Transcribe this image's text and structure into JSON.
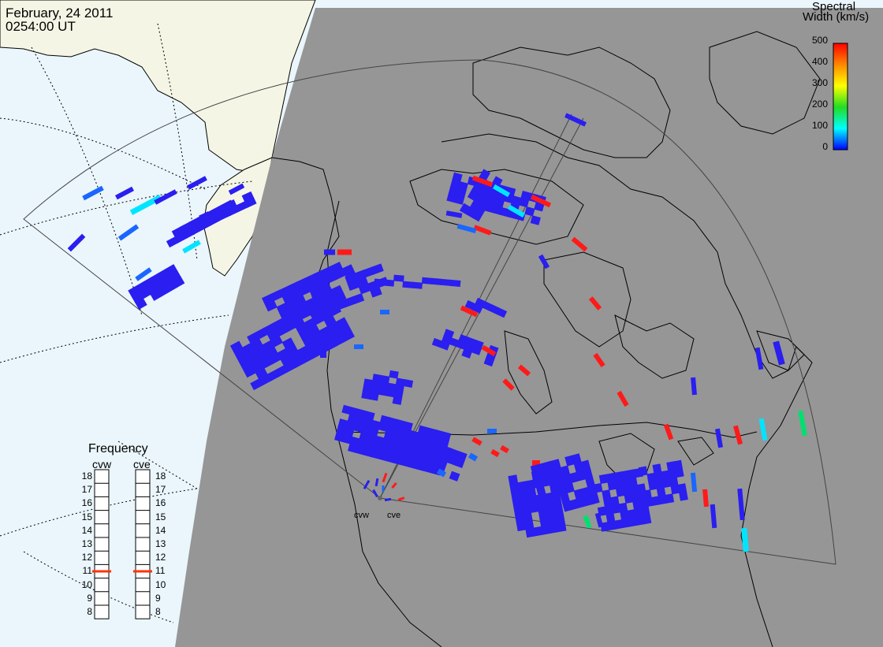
{
  "header": {
    "date": "February, 24 2011",
    "time": "0254:00 UT"
  },
  "colorbar": {
    "title_line1": "Spectral",
    "title_line2": "Width (km/s)",
    "ticks": [
      "500",
      "400",
      "300",
      "200",
      "100",
      "0"
    ],
    "stops": [
      "#ff0000",
      "#ff8800",
      "#ffff00",
      "#22dd22",
      "#00ffff",
      "#0000ff"
    ]
  },
  "frequency_panel": {
    "title": "Frequency",
    "radars": [
      {
        "name": "cvw",
        "value_mhz": 11
      },
      {
        "name": "cve",
        "value_mhz": 11
      }
    ],
    "scale": [
      "18",
      "17",
      "16",
      "15",
      "14",
      "13",
      "12",
      "11",
      "10",
      "9",
      "8"
    ],
    "marker_color": "#ff3300"
  },
  "sites": {
    "west": "cvw",
    "east": "cve"
  },
  "colors": {
    "ocean": "#eaf6fc",
    "land_day": "#f5f5e6",
    "night": "#969696",
    "low_width": "#2a1ef0",
    "mid_width": "#00e5ff",
    "high_width": "#ff1a1a",
    "med_blue": "#1a66ff",
    "green": "#00e070"
  }
}
